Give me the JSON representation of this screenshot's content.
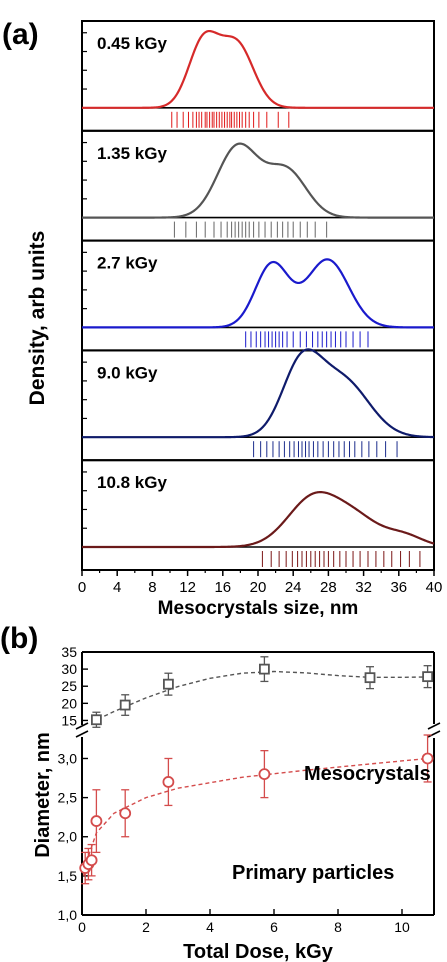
{
  "panel_a": {
    "label": "(a)",
    "ylabel": "Density, arb units",
    "xlabel": "Mesocrystals size, nm",
    "x_ticks": [
      "0",
      "4",
      "8",
      "12",
      "16",
      "20",
      "24",
      "28",
      "32",
      "36",
      "40"
    ],
    "chart_data": {
      "type": "area",
      "xlim": [
        0,
        40
      ],
      "subplots": [
        {
          "label": "0.45 kGy",
          "color": "#d62a2a",
          "rug_color": "#e01818",
          "peaks": [
            {
              "mu": 13.8,
              "sd": 1.7,
              "a": 0.83
            },
            {
              "mu": 17.6,
              "sd": 1.9,
              "a": 0.8
            }
          ],
          "rug": [
            10.2,
            10.8,
            11.5,
            12.1,
            12.6,
            13.0,
            13.3,
            13.6,
            14.0,
            14.2,
            14.5,
            14.8,
            15.0,
            15.3,
            15.6,
            15.9,
            16.2,
            16.5,
            16.8,
            17.0,
            17.3,
            17.6,
            17.9,
            18.2,
            18.6,
            19.0,
            19.5,
            20.1,
            21.0,
            22.3,
            23.5
          ]
        },
        {
          "label": "1.35 kGy",
          "color": "#555555",
          "rug_color": "#666666",
          "peaks": [
            {
              "mu": 17.7,
              "sd": 2.3,
              "a": 0.9
            },
            {
              "mu": 23.2,
              "sd": 2.3,
              "a": 0.6
            }
          ],
          "rug": [
            10.5,
            11.8,
            13.0,
            14.0,
            15.0,
            15.8,
            16.5,
            17.0,
            17.4,
            17.8,
            18.2,
            18.6,
            19.0,
            19.5,
            20.1,
            20.8,
            21.5,
            22.2,
            22.8,
            23.4,
            24.0,
            24.8,
            25.6,
            26.5,
            27.8
          ]
        },
        {
          "label": "2.7 kGy",
          "color": "#1a1acc",
          "rug_color": "#1a1acc",
          "peaks": [
            {
              "mu": 21.6,
              "sd": 1.9,
              "a": 0.8
            },
            {
              "mu": 27.9,
              "sd": 2.4,
              "a": 0.86
            }
          ],
          "rug": [
            18.6,
            19.2,
            19.8,
            20.3,
            20.8,
            21.2,
            21.6,
            22.0,
            22.4,
            22.8,
            23.3,
            24.0,
            24.8,
            25.5,
            26.2,
            26.8,
            27.3,
            27.8,
            28.3,
            28.8,
            29.4,
            30.0,
            30.8,
            31.6,
            32.5
          ]
        },
        {
          "label": "9.0 kGy",
          "color": "#0f1b6b",
          "rug_color": "#1b2c8c",
          "peaks": [
            {
              "mu": 24.9,
              "sd": 2.2,
              "a": 0.86
            },
            {
              "mu": 29.6,
              "sd": 3.0,
              "a": 0.72
            }
          ],
          "rug": [
            19.5,
            20.3,
            21.0,
            21.7,
            22.4,
            23.0,
            23.6,
            24.1,
            24.6,
            25.0,
            25.4,
            25.8,
            26.3,
            26.8,
            27.4,
            28.0,
            28.6,
            29.2,
            29.8,
            30.4,
            31.0,
            31.8,
            32.6,
            33.5,
            34.5,
            35.8
          ]
        },
        {
          "label": "10.8 kGy",
          "color": "#6b1a1a",
          "rug_color": "#7a1515",
          "peaks": [
            {
              "mu": 26.5,
              "sd": 3.0,
              "a": 0.65
            },
            {
              "mu": 31.5,
              "sd": 2.5,
              "a": 0.28
            },
            {
              "mu": 36.5,
              "sd": 2.2,
              "a": 0.15
            }
          ],
          "rug": [
            20.5,
            21.5,
            22.4,
            23.2,
            23.9,
            24.5,
            25.0,
            25.5,
            26.0,
            26.5,
            27.0,
            27.5,
            28.0,
            28.6,
            29.3,
            30.0,
            30.8,
            31.6,
            32.5,
            33.4,
            34.3,
            35.2,
            36.2,
            37.2,
            38.4
          ]
        }
      ]
    }
  },
  "panel_b": {
    "label": "(b)",
    "ylabel": "Diameter, nm",
    "xlabel": "Total Dose, kGy",
    "series_labels": {
      "meso": "Mesocrystals",
      "primary": "Primary particles"
    },
    "upper_ticks": [
      "35",
      "30",
      "25",
      "20",
      "15"
    ],
    "lower_ticks": [
      "3,0",
      "2,5",
      "2,0",
      "1,5",
      "1,0"
    ],
    "x_ticks": [
      "0",
      "2",
      "4",
      "6",
      "8",
      "10"
    ],
    "chart_data": {
      "type": "scatter",
      "xlim": [
        0,
        11
      ],
      "ylim_upper": [
        12.5,
        35
      ],
      "ylim_lower": [
        1.0,
        3.3
      ],
      "series": [
        {
          "name": "Mesocrystals",
          "marker": "square",
          "color": "#555555",
          "x": [
            0.45,
            1.35,
            2.7,
            5.7,
            9.0,
            10.8
          ],
          "y": [
            15.2,
            19.5,
            25.6,
            30.0,
            27.5,
            27.8
          ],
          "err": [
            2.2,
            3.0,
            3.2,
            3.6,
            3.2,
            3.2
          ],
          "fit_x": [
            0.3,
            1.0,
            2.0,
            3.0,
            4.0,
            5.0,
            6.0,
            7.0,
            8.0,
            9.0,
            10.0,
            10.8
          ],
          "fit_y": [
            14.5,
            17.6,
            21.6,
            24.9,
            27.3,
            28.8,
            29.3,
            28.9,
            28.1,
            27.6,
            27.6,
            27.7
          ]
        },
        {
          "name": "Primary particles",
          "marker": "circle",
          "color": "#d44c4c",
          "x": [
            0.1,
            0.2,
            0.3,
            0.45,
            1.35,
            2.7,
            5.7,
            10.8
          ],
          "y": [
            1.6,
            1.65,
            1.7,
            2.2,
            2.3,
            2.7,
            2.8,
            3.0
          ],
          "err": [
            0.2,
            0.2,
            0.2,
            0.4,
            0.3,
            0.3,
            0.3,
            0.3
          ],
          "fit_x": [
            0.05,
            0.2,
            0.45,
            1.0,
            2.0,
            3.0,
            5.0,
            7.0,
            9.0,
            10.8
          ],
          "fit_y": [
            1.5,
            1.75,
            2.05,
            2.3,
            2.5,
            2.62,
            2.76,
            2.85,
            2.93,
            3.0
          ]
        }
      ]
    }
  }
}
